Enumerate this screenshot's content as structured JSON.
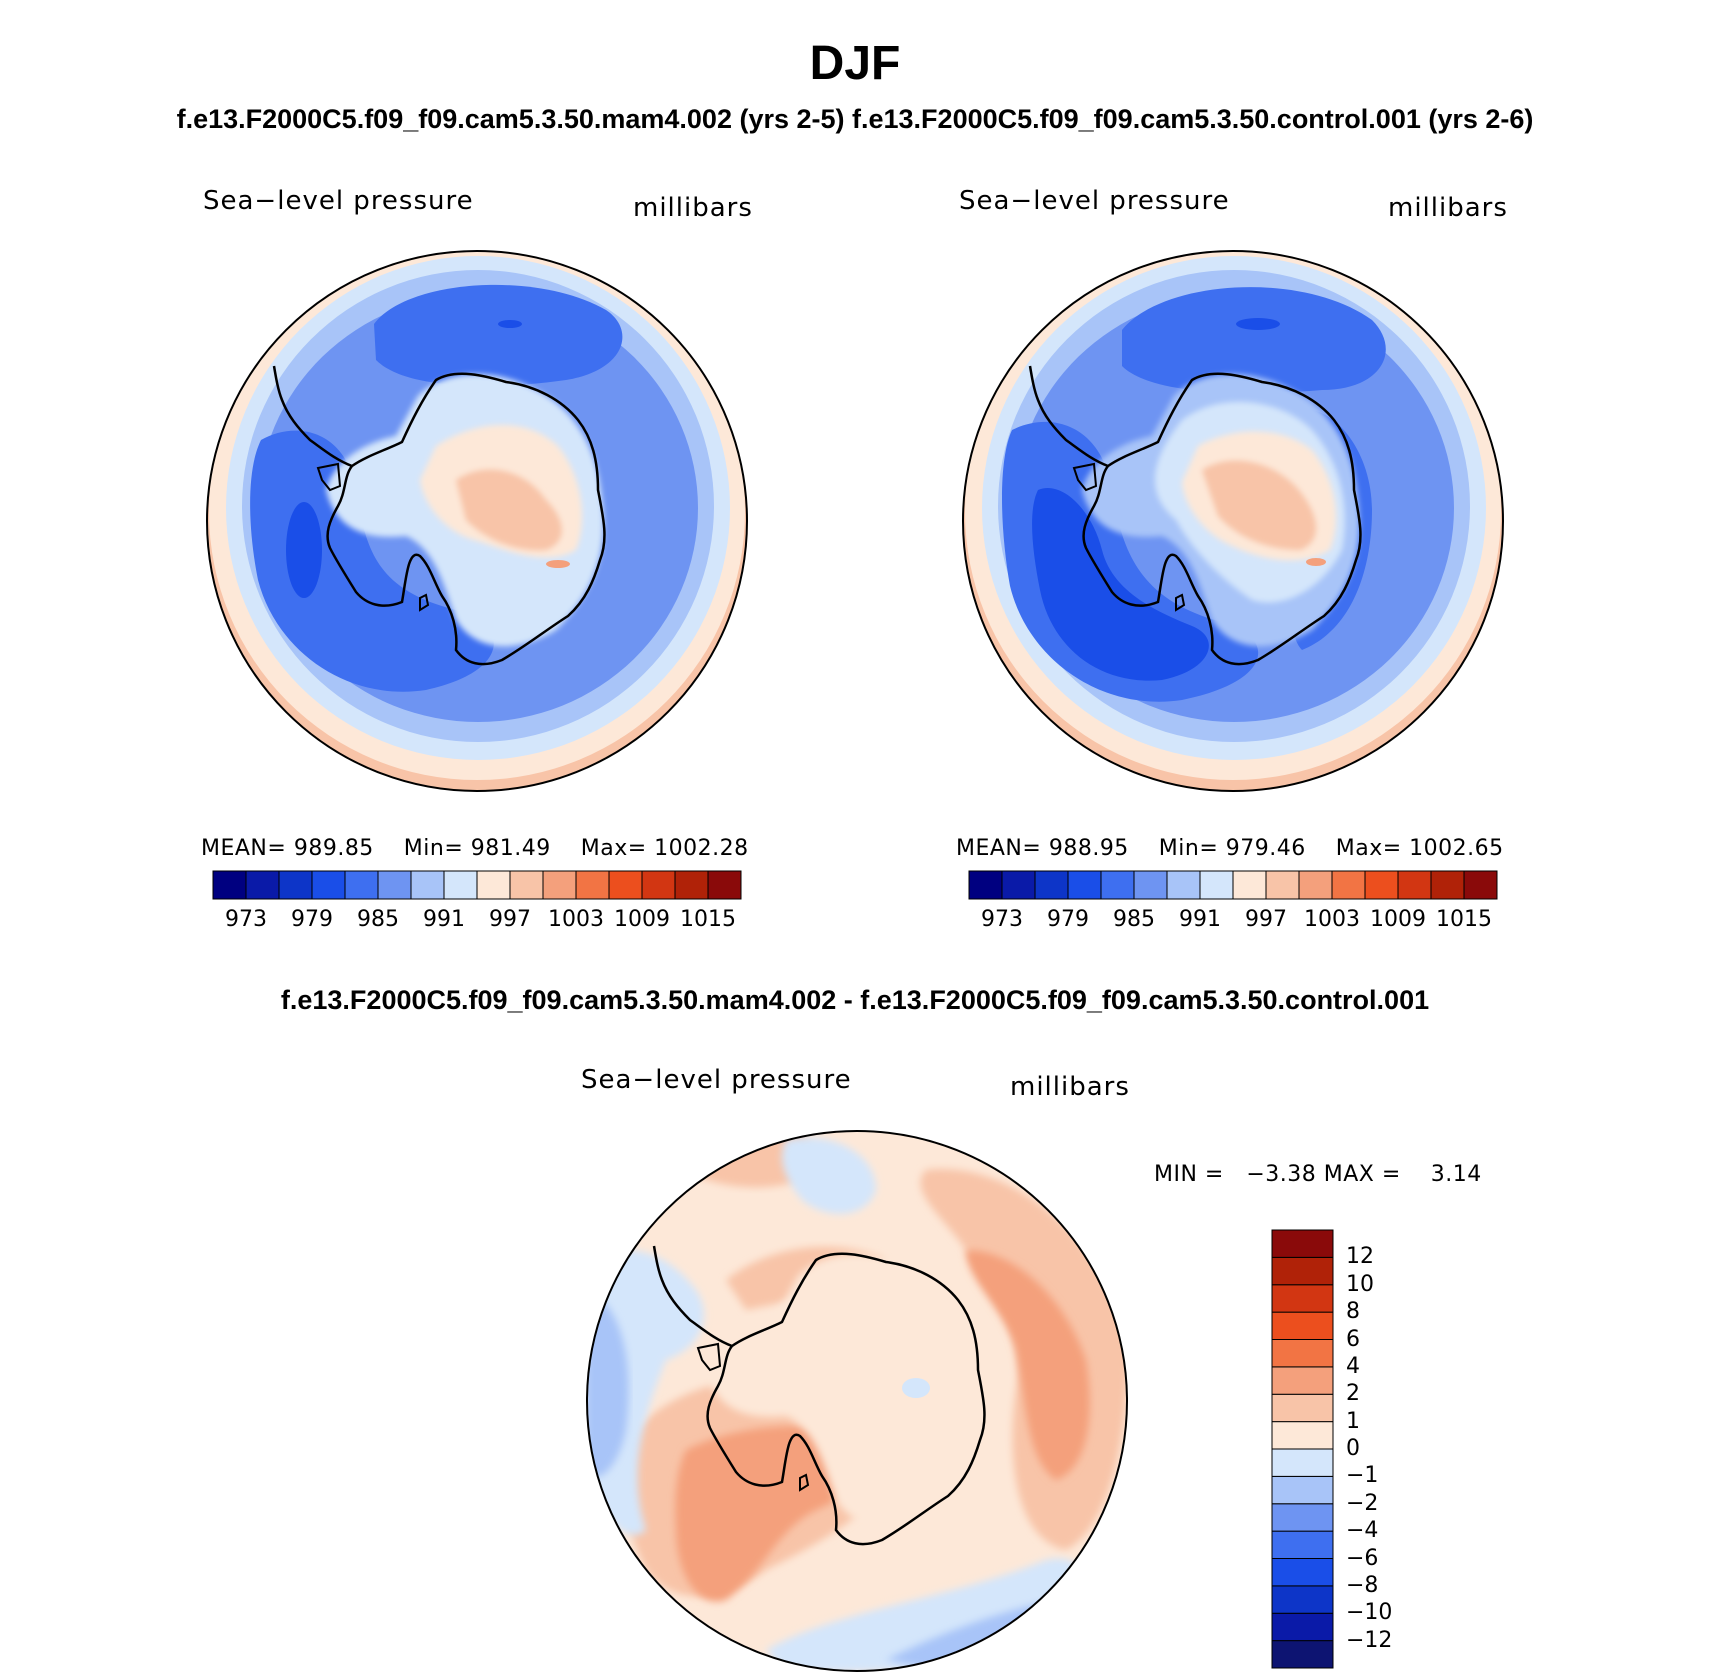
{
  "figure": {
    "title": "DJF",
    "subtitle": "f.e13.F2000C5.f09_f09.cam5.3.50.mam4.002 (yrs 2-5) f.e13.F2000C5.f09_f09.cam5.3.50.control.001 (yrs 2-6)",
    "diff_title": "f.e13.F2000C5.f09_f09.cam5.3.50.mam4.002 - f.e13.F2000C5.f09_f09.cam5.3.50.control.001"
  },
  "colors": {
    "abs_scale": [
      "#000080",
      "#0a1aa8",
      "#0d35c8",
      "#1a4ee8",
      "#3e6ff0",
      "#6e94f2",
      "#a8c4f8",
      "#d4e6fb",
      "#fde8d8",
      "#f8c4a8",
      "#f4a07c",
      "#f27444",
      "#ec4f1e",
      "#d23612",
      "#b02208",
      "#8a0a0a"
    ],
    "diff_scale": [
      "#0d1472",
      "#0a1aa8",
      "#0d35c8",
      "#1a4ee8",
      "#3e6ff0",
      "#6e94f2",
      "#a8c4f8",
      "#d4e6fb",
      "#fde8d8",
      "#f8c4a8",
      "#f4a07c",
      "#f27444",
      "#ec4f1e",
      "#d23612",
      "#b02208",
      "#8a0a0a"
    ]
  },
  "panels": [
    {
      "title_left": "Sea−level pressure",
      "title_right": "millibars",
      "stats": {
        "mean_label": "MEAN=",
        "mean": "989.85",
        "min_label": "Min=",
        "min": "981.49",
        "max_label": "Max=",
        "max": "1002.28"
      }
    },
    {
      "title_left": "Sea−level pressure",
      "title_right": "millibars",
      "stats": {
        "mean_label": "MEAN=",
        "mean": "988.95",
        "min_label": "Min=",
        "min": "979.46",
        "max_label": "Max=",
        "max": "1002.65"
      }
    },
    {
      "title_left": "Sea−level pressure",
      "title_right": "millibars",
      "stats": {
        "min_label": "MIN =",
        "min": "−3.38",
        "max_label": "MAX =",
        "max": "3.14"
      }
    }
  ],
  "chart_data": [
    {
      "type": "heatmap",
      "title": "Sea-level pressure",
      "units": "millibars",
      "projection": "south polar stereographic",
      "contour_levels": [
        973,
        976,
        979,
        982,
        985,
        988,
        991,
        994,
        997,
        1000,
        1003,
        1006,
        1009,
        1012,
        1015
      ],
      "colorbar_ticks": [
        "973",
        "979",
        "985",
        "991",
        "997",
        "1003",
        "1009",
        "1015"
      ],
      "mean": 989.85,
      "min": 981.49,
      "max": 1002.28
    },
    {
      "type": "heatmap",
      "title": "Sea-level pressure",
      "units": "millibars",
      "projection": "south polar stereographic",
      "contour_levels": [
        973,
        976,
        979,
        982,
        985,
        988,
        991,
        994,
        997,
        1000,
        1003,
        1006,
        1009,
        1012,
        1015
      ],
      "colorbar_ticks": [
        "973",
        "979",
        "985",
        "991",
        "997",
        "1003",
        "1009",
        "1015"
      ],
      "mean": 988.95,
      "min": 979.46,
      "max": 1002.65
    },
    {
      "type": "heatmap",
      "title": "Sea-level pressure",
      "units": "millibars",
      "projection": "south polar stereographic",
      "contour_levels": [
        -12,
        -10,
        -8,
        -6,
        -4,
        -2,
        -1,
        0,
        1,
        2,
        4,
        6,
        8,
        10,
        12
      ],
      "colorbar_ticks": [
        "12",
        "10",
        "8",
        "6",
        "4",
        "2",
        "1",
        "0",
        "−1",
        "−2",
        "−4",
        "−6",
        "−8",
        "−10",
        "−12"
      ],
      "min": -3.38,
      "max": 3.14
    }
  ]
}
